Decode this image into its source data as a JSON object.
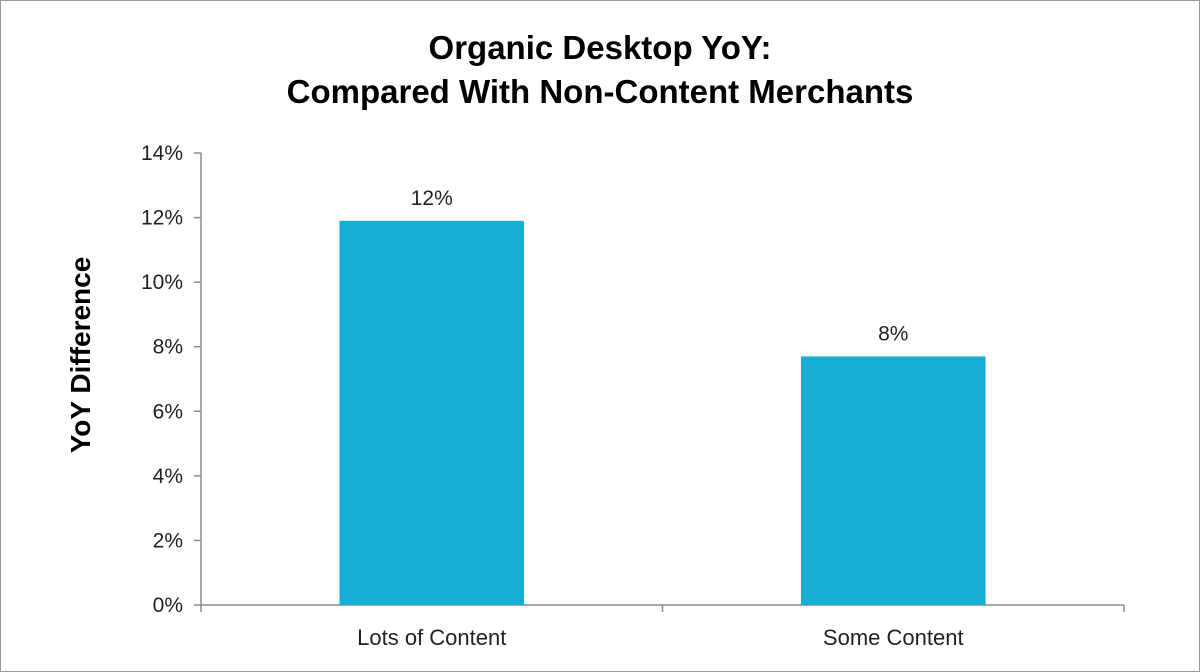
{
  "chart_data": {
    "type": "bar",
    "title_lines": [
      "Organic Desktop YoY:",
      "Compared With Non-Content Merchants"
    ],
    "xlabel": "",
    "ylabel": "YoY Difference",
    "categories": [
      "Lots of Content",
      "Some Content"
    ],
    "values": [
      0.119,
      0.077
    ],
    "data_labels": [
      "12%",
      "8%"
    ],
    "ylim": [
      0,
      0.14
    ],
    "yticks": [
      0,
      0.02,
      0.04,
      0.06,
      0.08,
      0.1,
      0.12,
      0.14
    ],
    "ytick_labels": [
      "0%",
      "2%",
      "4%",
      "6%",
      "8%",
      "10%",
      "12%",
      "14%"
    ],
    "bar_color": "#17aed4",
    "grid": false,
    "legend": "none"
  }
}
